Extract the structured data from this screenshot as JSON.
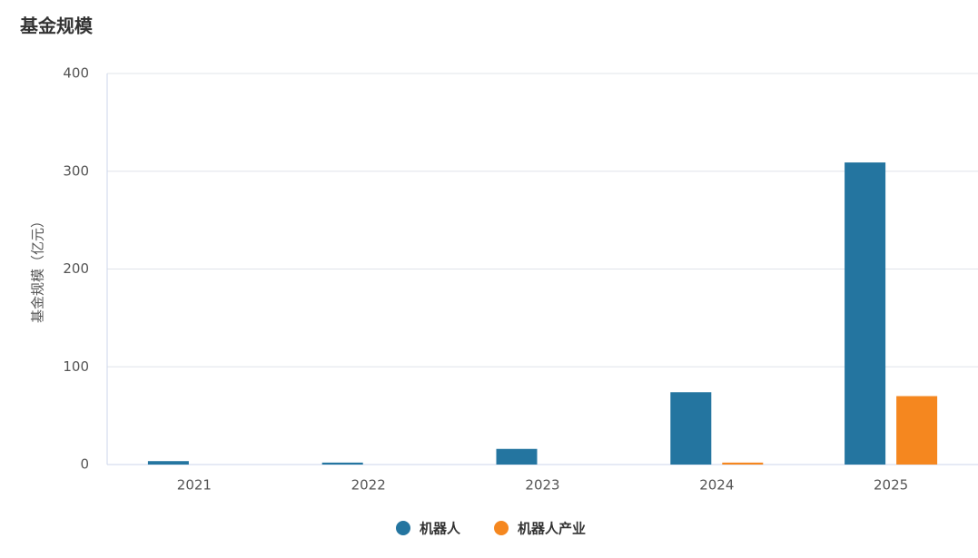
{
  "chart_data": {
    "type": "bar",
    "title": "基金规模",
    "y_label": "基金规模（亿元）",
    "categories": [
      "2021",
      "2022",
      "2023",
      "2024",
      "2025"
    ],
    "series": [
      {
        "name": "机器人",
        "color": "#2475a0",
        "values": [
          3.5,
          2,
          16,
          74,
          309
        ]
      },
      {
        "name": "机器人产业",
        "color": "#f5871f",
        "values": [
          0,
          0,
          0,
          2,
          70
        ]
      }
    ],
    "ylim": [
      0,
      400
    ],
    "yticks": [
      0,
      100,
      200,
      300,
      400
    ],
    "grid": true,
    "legend": "bottom"
  }
}
